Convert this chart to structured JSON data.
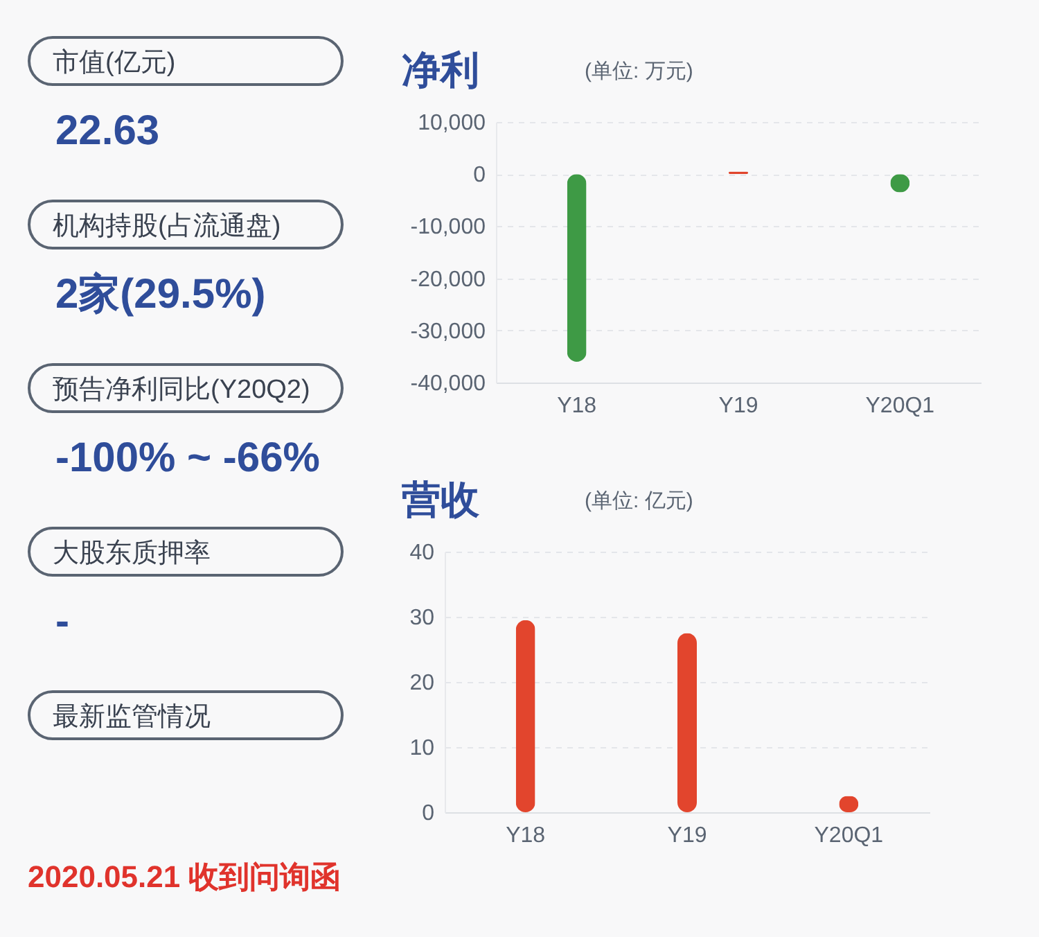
{
  "chart_data": [
    {
      "type": "other",
      "annotations": [
        "市值(亿元)",
        "22.63",
        "机构持股(占流通盘)",
        "2家(29.5%)",
        "预告净利同比(Y20Q2)",
        "-100% ~ -66%",
        "大股东质押率",
        "-",
        "最新监管情况",
        "2020.05.21 收到问询函"
      ]
    },
    {
      "type": "bar",
      "title": "净利",
      "subtitle": "(单位: 万元)",
      "categories": [
        "Y18",
        "Y19",
        "Y20Q1"
      ],
      "values": [
        -36000,
        500,
        -3500
      ],
      "colors": [
        "#3e9a45",
        "#e0442c",
        "#3e9a45"
      ],
      "ylim": [
        -40000,
        10000
      ],
      "yticks": [
        {
          "value": -40000,
          "label": "-40,000"
        },
        {
          "value": -30000,
          "label": "-30,000"
        },
        {
          "value": -20000,
          "label": "-20,000"
        },
        {
          "value": -10000,
          "label": "-10,000"
        },
        0,
        {
          "value": 10000,
          "label": "10,000"
        }
      ],
      "grid": "y"
    },
    {
      "type": "bar",
      "title": "营收",
      "subtitle": "(单位: 亿元)",
      "categories": [
        "Y18",
        "Y19",
        "Y20Q1"
      ],
      "values": [
        29.5,
        27.5,
        2.5
      ],
      "colors": [
        "#e2452d",
        "#e2452d",
        "#e2452d"
      ],
      "ylim": [
        0,
        40
      ],
      "yticks": [
        0,
        10,
        20,
        30,
        40
      ],
      "grid": "y"
    }
  ]
}
